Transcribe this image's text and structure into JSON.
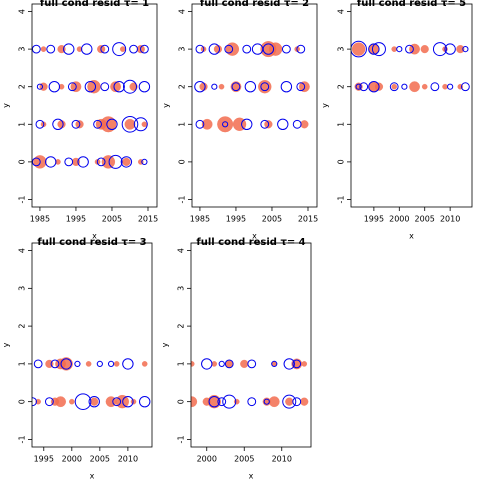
{
  "chart_data": [
    {
      "type": "scatter",
      "title": "full cond resid τ= 1",
      "xlabel": "x",
      "ylabel": "y",
      "xlim": [
        1982.8,
        2017.5
      ],
      "xticks": [
        1985,
        1995,
        2005,
        2015
      ],
      "ylim": [
        -1.2,
        4.2
      ],
      "yticks": [
        -1,
        0,
        1,
        2,
        3,
        4
      ],
      "series": [
        {
          "color": "#f26c4f",
          "filled": true,
          "x": [
            1985,
            1990,
            1995,
            2001,
            2004,
            2009,
            2013,
            1986,
            1991,
            1996,
            2002,
            2004,
            2010,
            2014,
            1986,
            1991,
            1995,
            2000,
            2006,
            2011,
            1986,
            1991,
            1996,
            2002,
            2008,
            2013
          ],
          "values": [
            0,
            0,
            0,
            0,
            0,
            0,
            0,
            1,
            1,
            1,
            1,
            1,
            1,
            1,
            2,
            2,
            2,
            2,
            2,
            2,
            3,
            3,
            3,
            3,
            3,
            3
          ],
          "sizes": [
            5,
            2,
            3,
            2,
            5,
            3,
            2,
            2,
            3,
            3,
            4,
            6,
            4,
            2,
            3,
            2,
            4,
            5,
            4,
            3,
            2,
            3,
            2,
            3,
            2,
            3
          ]
        },
        {
          "color": "#0000ee",
          "filled": false,
          "x": [
            1984,
            1988,
            1993,
            1997,
            2002,
            2006,
            2009,
            2014,
            1985,
            1990,
            1995,
            2001,
            2005,
            2010,
            2013,
            1985,
            1989,
            1994,
            1999,
            2003,
            2007,
            2010,
            2014,
            1984,
            1988,
            1993,
            1998,
            2003,
            2007,
            2011,
            2014
          ],
          "values": [
            0,
            0,
            0,
            0,
            0,
            0,
            0,
            0,
            1,
            1,
            1,
            1,
            1,
            1,
            1,
            2,
            2,
            2,
            2,
            2,
            2,
            2,
            2,
            3,
            3,
            3,
            3,
            3,
            3,
            3,
            3
          ],
          "sizes": [
            3,
            4,
            3,
            4,
            3,
            5,
            4,
            2,
            3,
            4,
            3,
            3,
            4,
            6,
            5,
            2,
            4,
            3,
            4,
            3,
            4,
            5,
            4,
            3,
            3,
            4,
            4,
            3,
            5,
            3,
            3
          ]
        }
      ]
    },
    {
      "type": "scatter",
      "title": "full cond resid τ= 2",
      "xlabel": "x",
      "ylabel": "y",
      "xlim": [
        1982.8,
        2017.5
      ],
      "xticks": [
        1985,
        1995,
        2005,
        2015
      ],
      "ylim": [
        -1.2,
        4.2
      ],
      "yticks": [
        -1,
        0,
        1,
        2,
        3,
        4
      ],
      "series": [
        {
          "color": "#f26c4f",
          "filled": true,
          "x": [
            1987,
            1992,
            1996,
            2004,
            2014,
            1986,
            1991,
            1995,
            2003,
            2014,
            1986,
            1990,
            1994,
            2004,
            2006,
            2012
          ],
          "values": [
            1,
            1,
            1,
            1,
            1,
            2,
            2,
            2,
            2,
            2,
            3,
            3,
            3,
            3,
            3,
            3
          ],
          "sizes": [
            4,
            6,
            5,
            3,
            3,
            3,
            2,
            4,
            5,
            4,
            2,
            3,
            5,
            6,
            5,
            2
          ]
        },
        {
          "color": "#0000ee",
          "filled": false,
          "x": [
            1985,
            1992,
            1998,
            2003,
            2008,
            2012,
            1985,
            1989,
            1995,
            1999,
            2003,
            2009,
            2013,
            1985,
            1989,
            1993,
            1998,
            2001,
            2004,
            2009,
            2013
          ],
          "values": [
            1,
            1,
            1,
            1,
            1,
            1,
            2,
            2,
            2,
            2,
            2,
            2,
            2,
            3,
            3,
            3,
            3,
            3,
            3,
            3,
            3
          ],
          "sizes": [
            3,
            2,
            4,
            3,
            4,
            3,
            4,
            2,
            3,
            4,
            3,
            4,
            3,
            3,
            4,
            3,
            3,
            4,
            4,
            3,
            3
          ]
        }
      ]
    },
    {
      "type": "scatter",
      "title": "full cond resid τ= 5",
      "xlabel": "x",
      "ylabel": "y",
      "xlim": [
        1990.5,
        2014.3
      ],
      "xticks": [
        1995,
        2000,
        2005,
        2010
      ],
      "ylim": [
        -1.2,
        4.2
      ],
      "yticks": [
        -1,
        0,
        1,
        2,
        3,
        4
      ],
      "series": [
        {
          "color": "#f26c4f",
          "filled": true,
          "x": [
            1992,
            1995,
            1996,
            1999,
            2003,
            2005,
            2009,
            2012,
            1992,
            1995,
            1999,
            2003,
            2005,
            2009,
            2012
          ],
          "values": [
            2,
            2,
            2,
            2,
            2,
            2,
            2,
            2,
            3,
            3,
            3,
            3,
            3,
            3,
            3
          ],
          "sizes": [
            3,
            4,
            3,
            2,
            4,
            2,
            2,
            2,
            5,
            4,
            2,
            4,
            3,
            2,
            3
          ]
        },
        {
          "color": "#0000ee",
          "filled": false,
          "x": [
            1992,
            1993,
            1995,
            1999,
            2001,
            2007,
            2010,
            2013,
            1992,
            1995,
            1996,
            2000,
            2002,
            2008,
            2010,
            2013
          ],
          "values": [
            2,
            2,
            2,
            2,
            2,
            2,
            2,
            2,
            3,
            3,
            3,
            3,
            3,
            3,
            3,
            3
          ],
          "sizes": [
            2,
            3,
            4,
            3,
            2,
            3,
            2,
            3,
            6,
            4,
            5,
            2,
            3,
            5,
            4,
            2
          ]
        }
      ]
    },
    {
      "type": "scatter",
      "title": "full cond resid τ= 3",
      "xlabel": "x",
      "ylabel": "y",
      "xlim": [
        1992.9,
        2014.3
      ],
      "xticks": [
        1995,
        2000,
        2005,
        2010
      ],
      "ylim": [
        -1.2,
        4.2
      ],
      "yticks": [
        -1,
        0,
        1,
        2,
        3,
        4
      ],
      "series": [
        {
          "color": "#f26c4f",
          "filled": true,
          "x": [
            1994,
            1997,
            1998,
            2000,
            2004,
            2007,
            2009,
            2011,
            1996,
            1998,
            1999,
            2003,
            2008,
            2013
          ],
          "values": [
            0,
            0,
            0,
            0,
            0,
            0,
            0,
            0,
            1,
            1,
            1,
            1,
            1,
            1
          ],
          "sizes": [
            2,
            3,
            4,
            2,
            3,
            4,
            5,
            2,
            3,
            4,
            5,
            2,
            2,
            2
          ]
        },
        {
          "color": "#0000ee",
          "filled": false,
          "x": [
            1993,
            1996,
            2002,
            2004,
            2008,
            2010,
            2013,
            1994,
            1997,
            1999,
            2001,
            2005,
            2007,
            2010
          ],
          "values": [
            0,
            0,
            0,
            0,
            0,
            0,
            0,
            1,
            1,
            1,
            1,
            1,
            1,
            1
          ],
          "sizes": [
            3,
            3,
            6,
            4,
            3,
            4,
            4,
            3,
            3,
            4,
            2,
            2,
            2,
            4
          ]
        }
      ]
    },
    {
      "type": "scatter",
      "title": "full cond resid τ= 4",
      "xlabel": "x",
      "ylabel": "y",
      "xlim": [
        1997.9,
        2013.9
      ],
      "xticks": [
        2000,
        2005,
        2010
      ],
      "ylim": [
        -1.2,
        4.2
      ],
      "yticks": [
        -1,
        0,
        1,
        2,
        3,
        4
      ],
      "series": [
        {
          "color": "#f26c4f",
          "filled": true,
          "x": [
            1998,
            2000,
            2001,
            2004,
            2008,
            2009,
            2011,
            2013,
            1998,
            2001,
            2003,
            2005,
            2009,
            2012,
            2013
          ],
          "values": [
            0,
            0,
            0,
            0,
            0,
            0,
            0,
            0,
            1,
            1,
            1,
            1,
            1,
            1,
            1
          ],
          "sizes": [
            4,
            3,
            5,
            2,
            3,
            4,
            3,
            3,
            2,
            2,
            3,
            3,
            2,
            4,
            2
          ]
        },
        {
          "color": "#0000ee",
          "filled": false,
          "x": [
            2001,
            2002,
            2003,
            2006,
            2008,
            2011,
            2012,
            2000,
            2002,
            2003,
            2006,
            2009,
            2011,
            2012
          ],
          "values": [
            0,
            0,
            0,
            0,
            0,
            0,
            0,
            1,
            1,
            1,
            1,
            1,
            1,
            1
          ],
          "sizes": [
            4,
            3,
            5,
            3,
            2,
            5,
            3,
            4,
            2,
            3,
            3,
            2,
            4,
            3
          ]
        }
      ]
    }
  ]
}
